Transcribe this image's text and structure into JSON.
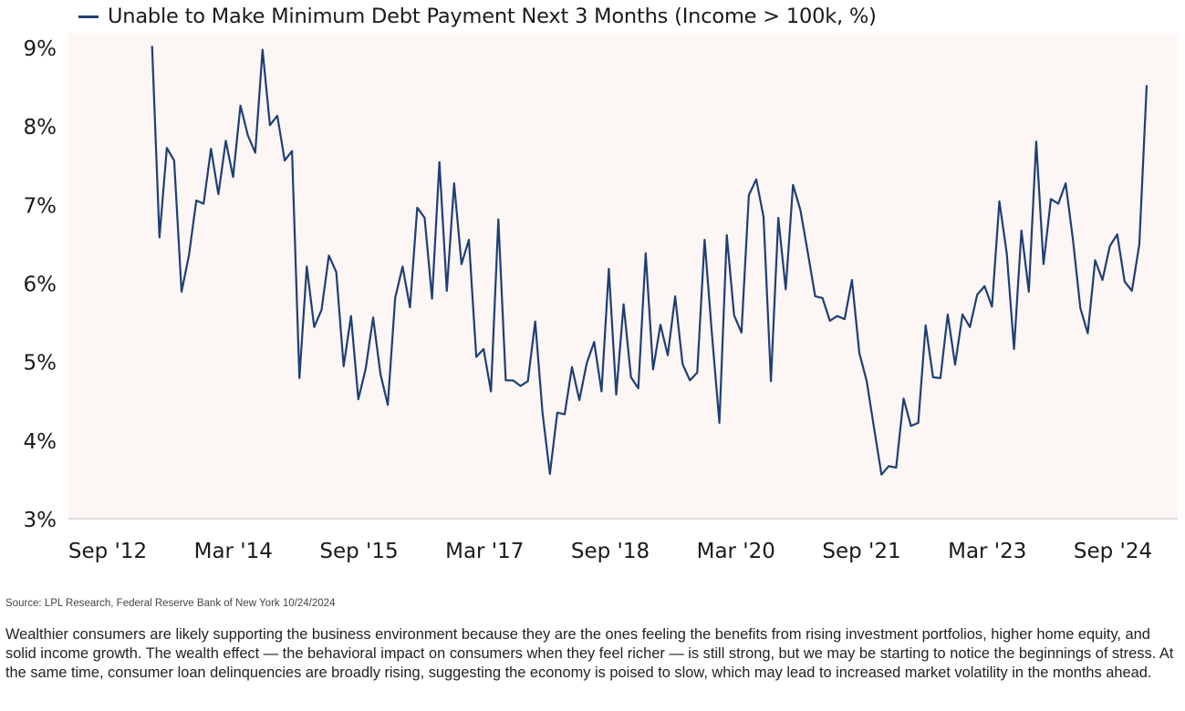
{
  "chart_data": {
    "type": "line",
    "title": "Unable to Make Minimum Debt Payment Next 3 Months (Income > 100k, %)",
    "xlabel": "",
    "ylabel": "",
    "ylim": [
      3,
      9
    ],
    "yticks": [
      "3%",
      "4%",
      "5%",
      "6%",
      "7%",
      "8%",
      "9%"
    ],
    "xticks": [
      "Sep '12",
      "Mar '14",
      "Sep '15",
      "Mar '17",
      "Sep '18",
      "Mar '20",
      "Sep '21",
      "Mar '23",
      "Sep '24"
    ],
    "grid": false,
    "legend": "top-left",
    "series": [
      {
        "name": "Unable to Make Minimum Debt Payment Next 3 Months (Income > 100k, %)",
        "color": "#1f3f73",
        "frequency": "monthly",
        "values": [
          9.02,
          6.58,
          7.72,
          7.56,
          5.89,
          6.35,
          7.05,
          7.01,
          7.71,
          7.13,
          7.81,
          7.35,
          8.26,
          7.88,
          7.66,
          8.97,
          8.01,
          8.13,
          7.56,
          7.68,
          4.79,
          6.21,
          5.44,
          5.66,
          6.35,
          6.14,
          4.94,
          5.58,
          4.52,
          4.91,
          5.56,
          4.84,
          4.45,
          5.81,
          6.21,
          5.69,
          6.96,
          6.83,
          5.8,
          7.54,
          5.9,
          7.27,
          6.24,
          6.55,
          5.06,
          5.16,
          4.62,
          6.81,
          4.76,
          4.76,
          4.69,
          4.75,
          5.51,
          4.35,
          3.57,
          4.35,
          4.33,
          4.93,
          4.51,
          4.98,
          5.25,
          4.62,
          6.18,
          4.58,
          5.73,
          4.8,
          4.66,
          6.38,
          4.9,
          5.47,
          5.08,
          5.83,
          4.97,
          4.76,
          4.86,
          6.55,
          5.34,
          4.22,
          6.61,
          5.59,
          5.37,
          7.12,
          7.32,
          6.84,
          4.75,
          6.83,
          5.92,
          7.25,
          6.93,
          6.39,
          5.83,
          5.81,
          5.52,
          5.58,
          5.54,
          6.04,
          5.11,
          4.75,
          4.15,
          3.56,
          3.67,
          3.65,
          4.53,
          4.18,
          4.22,
          5.46,
          4.8,
          4.79,
          5.6,
          4.96,
          5.6,
          5.44,
          5.85,
          5.96,
          5.7,
          7.04,
          6.38,
          5.16,
          6.67,
          5.89,
          7.8,
          6.24,
          7.07,
          7.01,
          7.27,
          6.55,
          5.68,
          5.36,
          6.29,
          6.04,
          6.47,
          6.62,
          6.02,
          5.9,
          6.49,
          8.52
        ]
      }
    ]
  },
  "source": "Source: LPL Research, Federal Reserve Bank of New York 10/24/2024",
  "commentary": "Wealthier consumers are likely supporting the business environment because they are the ones feeling the benefits from rising investment portfolios, higher home equity, and solid income growth. The wealth effect — the behavioral impact on consumers when they feel richer — is still strong, but we may be starting to notice the beginnings of stress. At the same time, consumer loan delinquencies are broadly rising, suggesting the economy is poised to slow, which may lead to increased market volatility in the months ahead."
}
